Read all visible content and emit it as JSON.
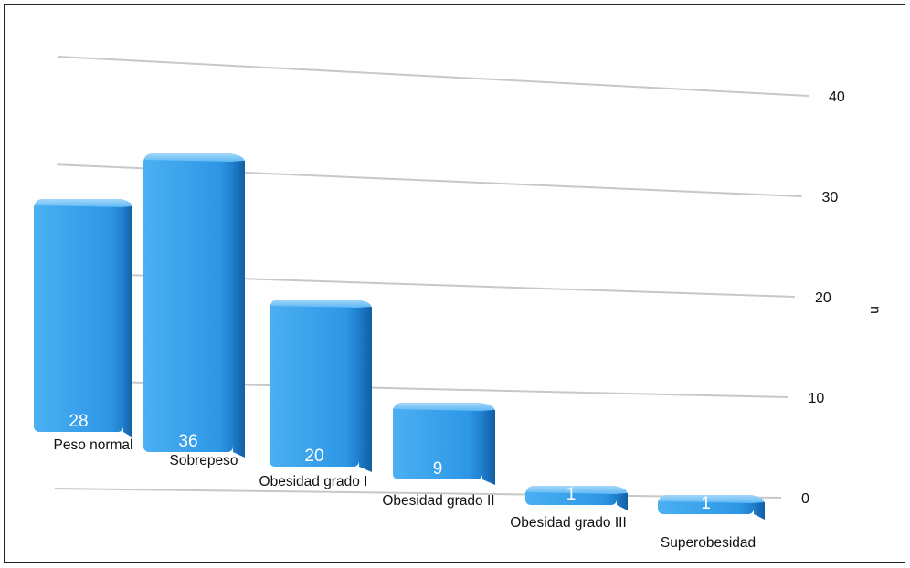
{
  "chart_data": {
    "type": "bar",
    "categories": [
      "Peso normal",
      "Sobrepeso",
      "Obesidad grado I",
      "Obesidad grado II",
      "Obesidad grado III",
      "Superobesidad"
    ],
    "values": [
      28,
      36,
      20,
      9,
      1,
      1
    ],
    "title": "",
    "xlabel": "",
    "ylabel": "n",
    "ylim": [
      0,
      40
    ],
    "yticks": [
      "0",
      "10",
      "20",
      "30",
      "40"
    ],
    "grid": true,
    "legend": "none",
    "bar_color": "#2f9be8",
    "style": "3d-perspective"
  }
}
